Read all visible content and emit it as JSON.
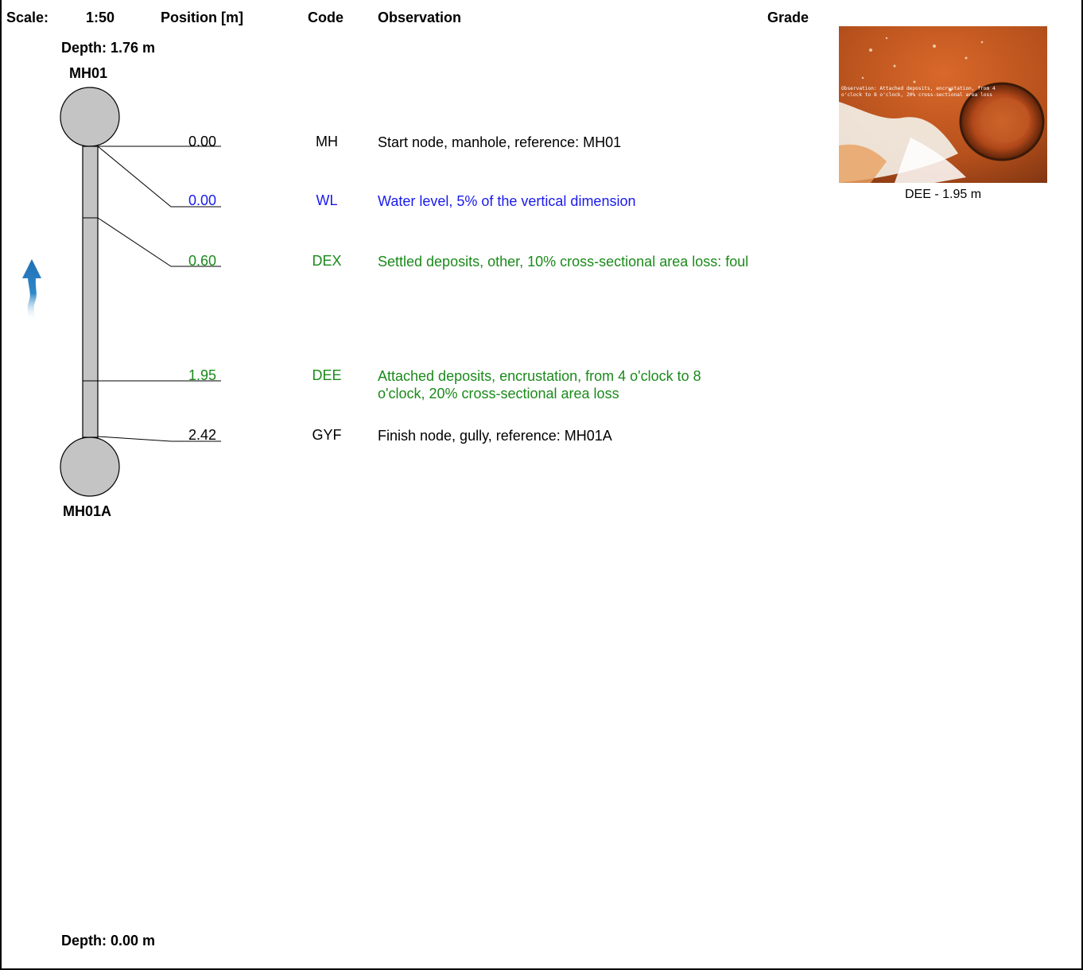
{
  "header": {
    "scale_label": "Scale:",
    "scale_value": "1:50",
    "position_label": "Position [m]",
    "code_label": "Code",
    "observation_label": "Observation",
    "grade_label": "Grade"
  },
  "start_node": {
    "depth": "Depth: 1.76 m",
    "name": "MH01"
  },
  "finish_node": {
    "name": "MH01A",
    "depth": "Depth: 0.00 m"
  },
  "flow_direction": "upstream-arrow-icon",
  "observations": [
    {
      "position": "0.00",
      "code": "MH",
      "text": "Start node, manhole, reference: MH01",
      "color": "#000000"
    },
    {
      "position": "0.00",
      "code": "WL",
      "text": "Water level, 5% of the vertical dimension",
      "color": "#1a1aee"
    },
    {
      "position": "0.60",
      "code": "DEX",
      "text": "Settled deposits, other, 10% cross-sectional area loss: foul",
      "color": "#1a8a1a"
    },
    {
      "position": "1.95",
      "code": "DEE",
      "text": "Attached deposits, encrustation, from 4 o'clock to 8 o'clock, 20% cross-sectional area loss",
      "color": "#1a8a1a"
    },
    {
      "position": "2.42",
      "code": "GYF",
      "text": "Finish node, gully, reference: MH01A",
      "color": "#000000"
    }
  ],
  "photo": {
    "overlay_line1": "Observation: Attached deposits, encrustation, from 4",
    "overlay_line2": "o'clock to 8 o'clock, 20% cross-sectional area loss",
    "caption": "DEE - 1.95 m"
  }
}
